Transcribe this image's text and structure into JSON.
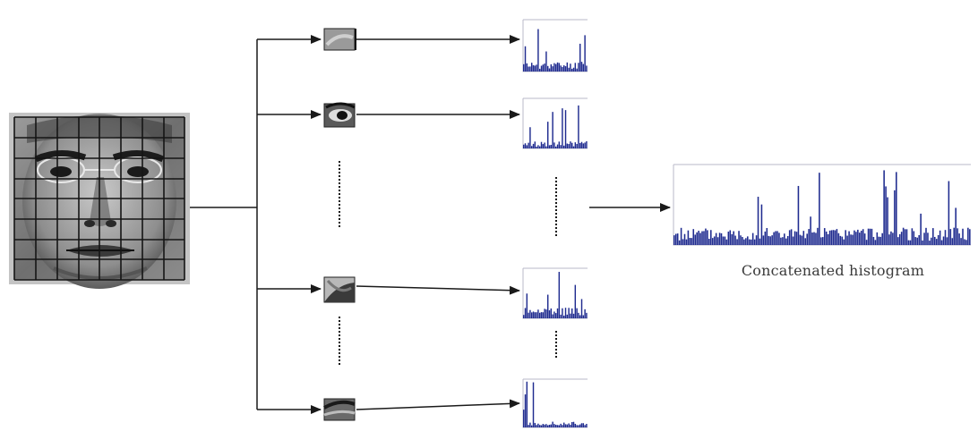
{
  "caption": "Concatenated histogram",
  "colors": {
    "line": "#1a1a1a",
    "histogram": "#1f2b8f",
    "axis": "#b8b8c8",
    "face_bg": "#8a8a8a",
    "grid": "#151515"
  },
  "icons": [
    "face-image",
    "face-patch",
    "patch-histogram",
    "concatenated-histogram",
    "arrow"
  ]
}
